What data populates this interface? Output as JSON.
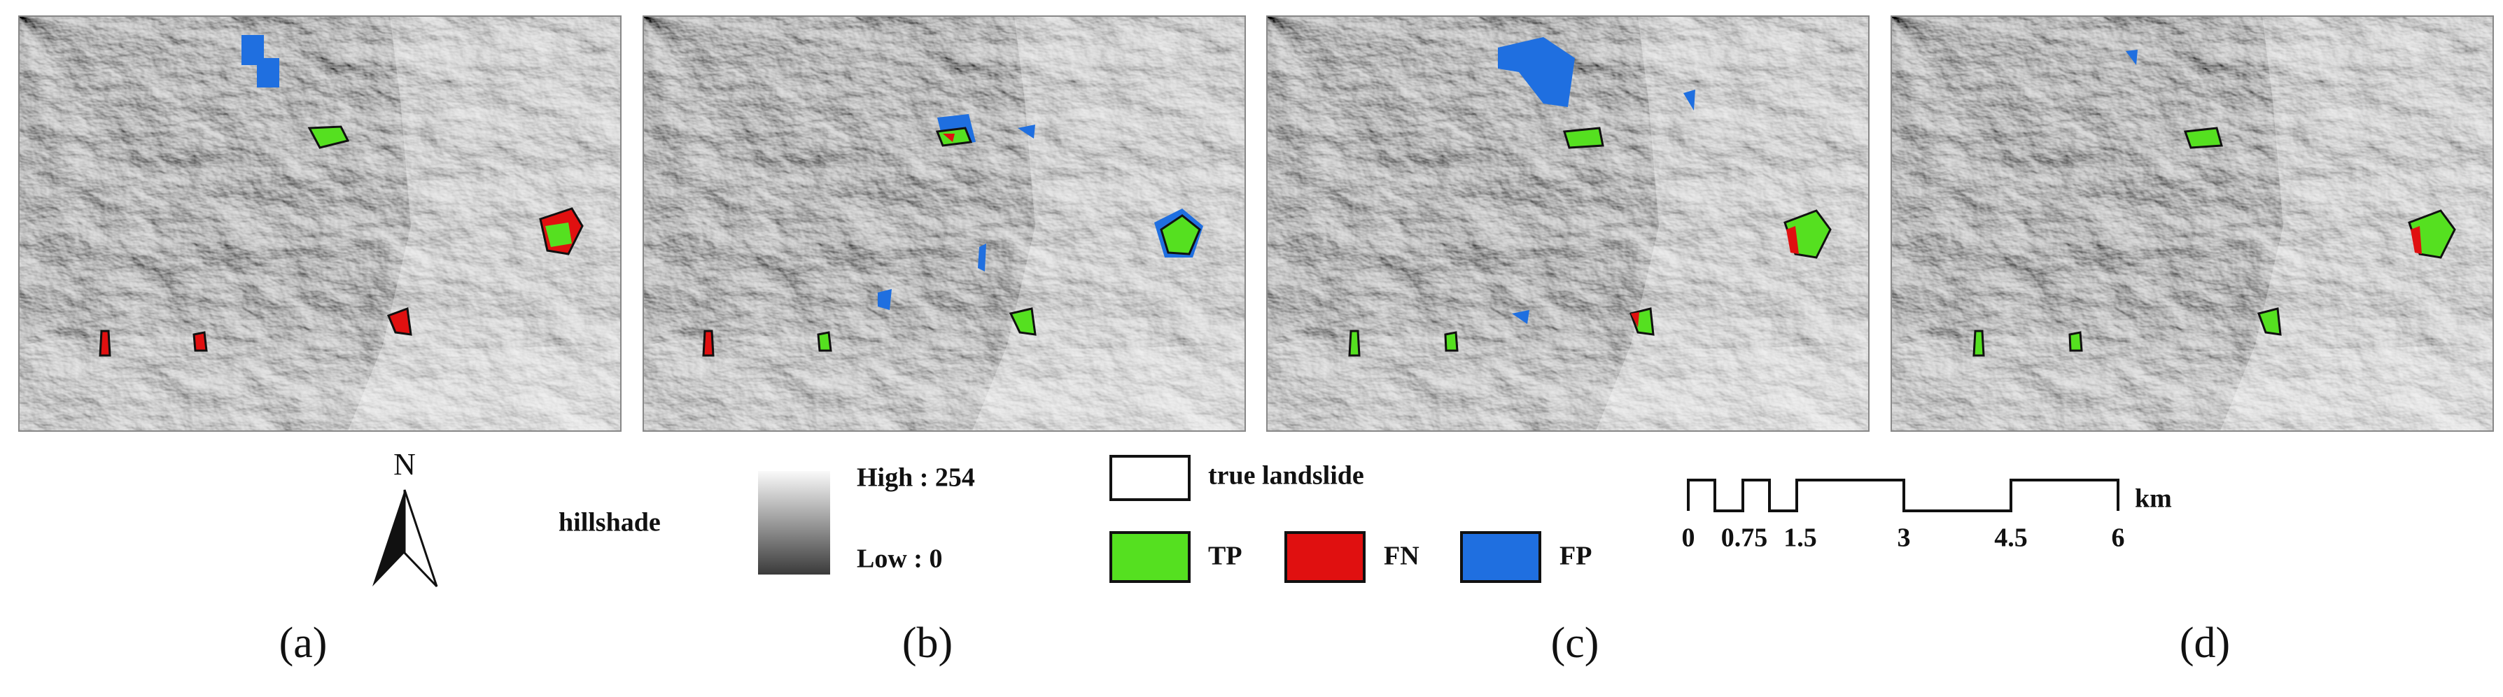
{
  "panels": [
    {
      "label": "(a)"
    },
    {
      "label": "(b)"
    },
    {
      "label": "(c)"
    },
    {
      "label": "(d)"
    }
  ],
  "legend": {
    "north": "N",
    "hillshade": {
      "title": "hillshade",
      "high": "High : 254",
      "low": "Low : 0"
    },
    "true_landslide": "true landslide",
    "tp": "TP",
    "fn": "FN",
    "fp": "FP"
  },
  "scale_bar": {
    "labels": [
      "0",
      "0.75",
      "1.5",
      "3",
      "4.5",
      "6"
    ],
    "unit": "km"
  }
}
